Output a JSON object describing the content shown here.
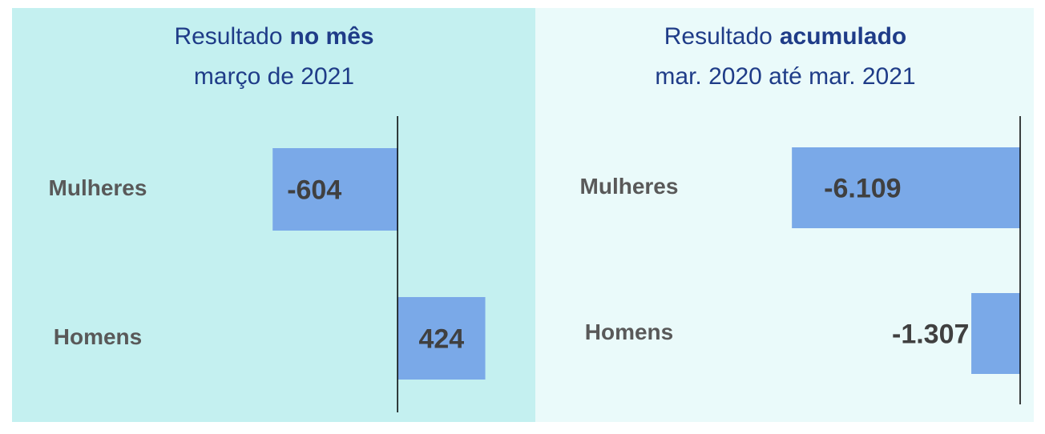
{
  "chart_data": [
    {
      "type": "bar",
      "orientation": "horizontal",
      "title": "Resultado",
      "title_emphasis": "no mês",
      "subtitle": "março de 2021",
      "categories": [
        "Mulheres",
        "Homens"
      ],
      "values": [
        -604,
        424
      ],
      "color": "#7aa9e8",
      "xlim": [
        -1000,
        600
      ]
    },
    {
      "type": "bar",
      "orientation": "horizontal",
      "title": "Resultado",
      "title_emphasis": "acumulado",
      "subtitle": "mar. 2020 até mar. 2021",
      "categories": [
        "Mulheres",
        "Homens"
      ],
      "values": [
        -6109,
        -1307
      ],
      "value_labels": [
        "-6.109",
        "-1.307"
      ],
      "color": "#7aa9e8",
      "xlim": [
        -8000,
        0
      ]
    }
  ]
}
